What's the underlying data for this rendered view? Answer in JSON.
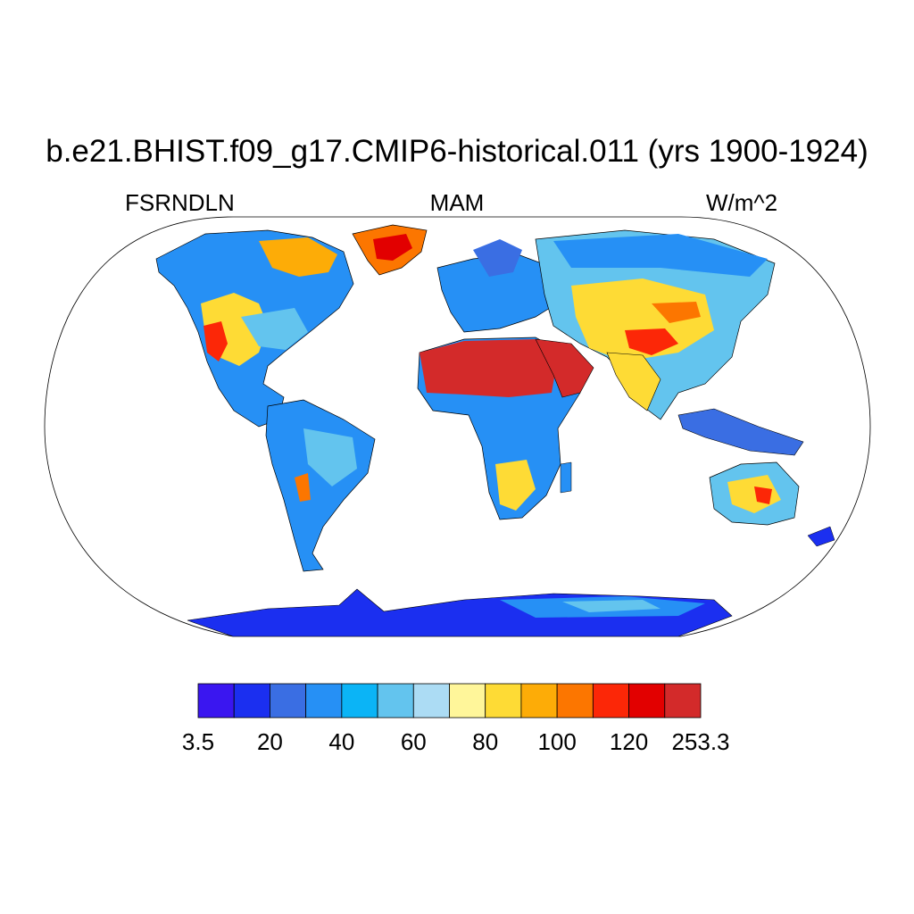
{
  "title": "b.e21.BHIST.f09_g17.CMIP6-historical.011 (yrs 1900-1924)",
  "left_label": "FSRNDLN",
  "center_label": "MAM",
  "right_label": "W/m^2",
  "colorbar": {
    "labels": [
      "3.5",
      "20",
      "40",
      "60",
      "80",
      "100",
      "120",
      "253.3"
    ],
    "colors": [
      "#3a16f0",
      "#1b2ff0",
      "#3a6ee3",
      "#2690f5",
      "#0bb4f6",
      "#63c4ee",
      "#acdcf4",
      "#fff69a",
      "#fedb35",
      "#fdac07",
      "#fc7600",
      "#fc2707",
      "#e20000",
      "#d32a2a"
    ]
  },
  "palette": {
    "ocean": "#ffffff",
    "outline": "#000000"
  }
}
